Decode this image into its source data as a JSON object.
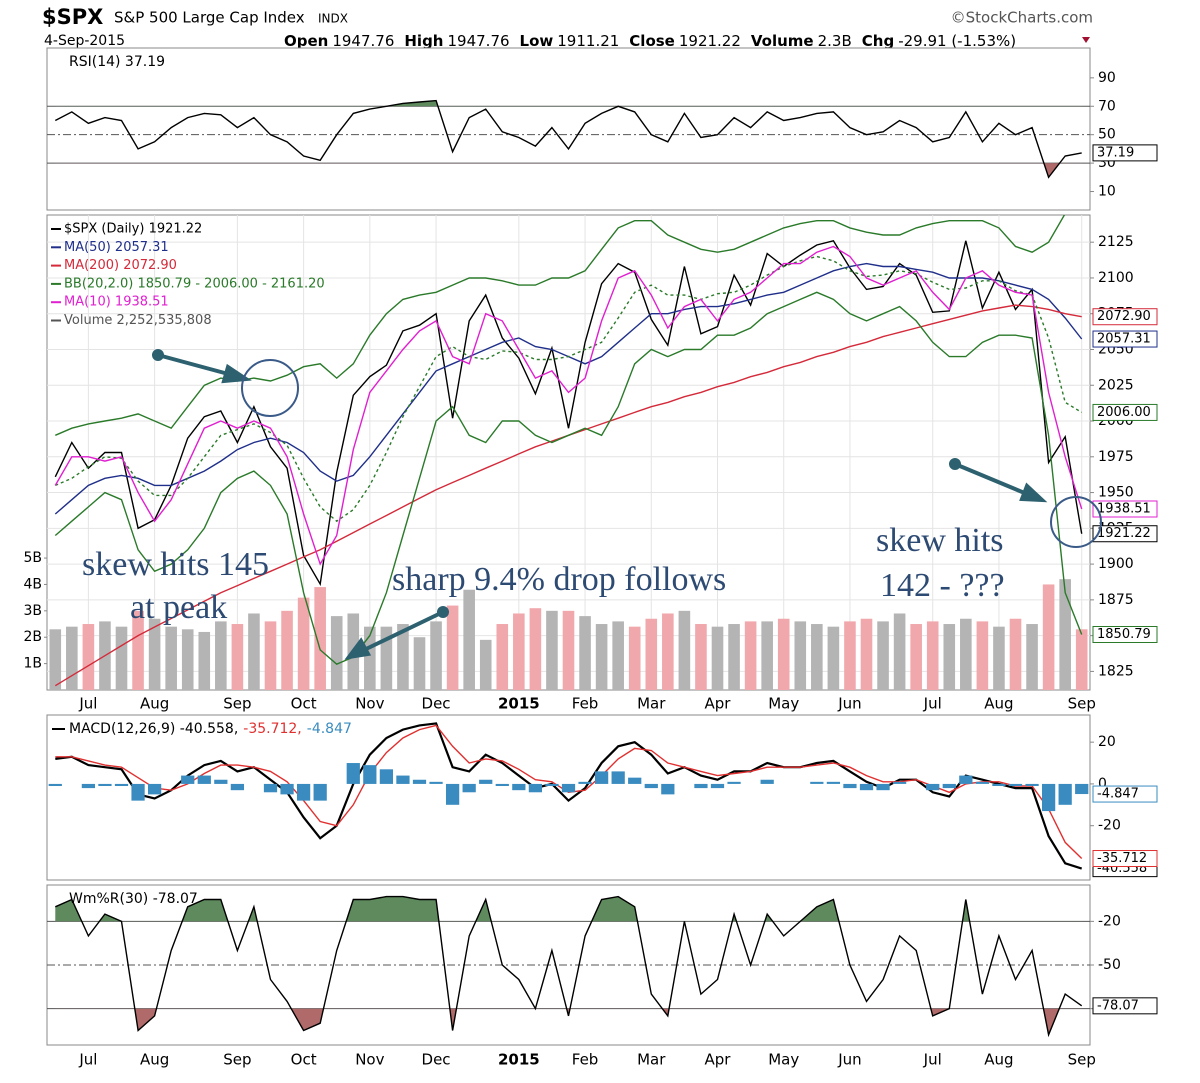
{
  "header": {
    "symbol": "$SPX",
    "name": "S&P 500 Large Cap Index",
    "exchange": "INDX",
    "source": "©StockCharts.com",
    "date": "4-Sep-2015",
    "quote": [
      {
        "label": "Open",
        "value": "1947.76"
      },
      {
        "label": "High",
        "value": "1947.76"
      },
      {
        "label": "Low",
        "value": "1911.21"
      },
      {
        "label": "Close",
        "value": "1921.22"
      },
      {
        "label": "Volume",
        "value": "2.3B"
      },
      {
        "label": "Chg",
        "value": "-29.91 (-1.53%)"
      }
    ]
  },
  "chart_data": [
    {
      "type": "line",
      "title": "RSI(14) 37.19",
      "ylim": [
        -3,
        111
      ],
      "yticks": [
        10,
        30,
        50,
        70,
        90
      ],
      "levels": [
        70,
        50,
        30
      ],
      "fill_above": {
        "value": 70,
        "color": "#5e8a5e"
      },
      "fill_below": {
        "value": 30,
        "color": "#b06a6a"
      },
      "series": [
        {
          "color": "#000000",
          "last_label": "37.19",
          "values": [
            60,
            66,
            58,
            62,
            60,
            40,
            45,
            55,
            62,
            65,
            64,
            55,
            62,
            50,
            45,
            35,
            32,
            50,
            65,
            68,
            70,
            72,
            73,
            74,
            38,
            62,
            68,
            52,
            48,
            42,
            55,
            40,
            58,
            65,
            70,
            66,
            50,
            45,
            65,
            48,
            50,
            62,
            55,
            66,
            60,
            62,
            65,
            66,
            55,
            50,
            52,
            60,
            55,
            45,
            48,
            66,
            45,
            58,
            50,
            55,
            20,
            35,
            37.19
          ]
        }
      ]
    },
    {
      "type": "line",
      "grid": true,
      "ylim": [
        1812,
        2144
      ],
      "yticks": [
        1825,
        1850,
        1875,
        1900,
        1925,
        1950,
        1975,
        2000,
        2025,
        2050,
        2075,
        2100,
        2125
      ],
      "categories": [
        null,
        null,
        "Jul",
        null,
        null,
        null,
        "Aug",
        null,
        null,
        null,
        null,
        "Sep",
        null,
        null,
        null,
        "Oct",
        null,
        null,
        null,
        "Nov",
        null,
        null,
        null,
        "Dec",
        null,
        null,
        null,
        null,
        "2015",
        null,
        null,
        null,
        "Feb",
        null,
        null,
        null,
        "Mar",
        null,
        null,
        null,
        "Apr",
        null,
        null,
        null,
        "May",
        null,
        null,
        null,
        "Jun",
        null,
        null,
        null,
        null,
        "Jul",
        null,
        null,
        null,
        "Aug",
        null,
        null,
        null,
        null,
        "Sep"
      ],
      "series": [
        {
          "name": "$SPX (Daily) 1921.22",
          "color": "#000000",
          "last_label": "1921.22",
          "values": [
            1961,
            1985,
            1967,
            1978,
            1978,
            1925,
            1931,
            1955,
            1988,
            2003,
            2007,
            1985,
            2010,
            1982,
            1967,
            1906,
            1886,
            1964,
            2018,
            2031,
            2039,
            2063,
            2067,
            2075,
            2002,
            2070,
            2088,
            2058,
            2044,
            2019,
            2051,
            1995,
            2055,
            2096,
            2110,
            2104,
            2071,
            2053,
            2108,
            2061,
            2066,
            2102,
            2081,
            2117,
            2108,
            2116,
            2123,
            2126,
            2107,
            2092,
            2094,
            2110,
            2102,
            2076,
            2077,
            2126,
            2079,
            2104,
            2078,
            2092,
            1971,
            1989,
            1921.22
          ]
        },
        {
          "name": "MA(50) 2057.31",
          "color": "#1f2f8a",
          "last_label": "2057.31",
          "values": [
            1935,
            1945,
            1955,
            1960,
            1962,
            1960,
            1955,
            1955,
            1960,
            1965,
            1972,
            1980,
            1985,
            1988,
            1985,
            1978,
            1965,
            1958,
            1962,
            1975,
            1990,
            2005,
            2020,
            2035,
            2040,
            2045,
            2050,
            2055,
            2058,
            2052,
            2050,
            2045,
            2040,
            2045,
            2055,
            2065,
            2075,
            2075,
            2078,
            2080,
            2080,
            2082,
            2085,
            2088,
            2090,
            2095,
            2100,
            2105,
            2108,
            2110,
            2108,
            2108,
            2106,
            2104,
            2100,
            2100,
            2100,
            2098,
            2095,
            2092,
            2085,
            2072,
            2057.31
          ]
        },
        {
          "name": "MA(200) 2072.90",
          "color": "#d42a3a",
          "last_label": "2072.90",
          "values": [
            1815,
            1822,
            1829,
            1836,
            1843,
            1850,
            1856,
            1862,
            1868,
            1874,
            1880,
            1885,
            1890,
            1895,
            1900,
            1905,
            1910,
            1916,
            1922,
            1928,
            1934,
            1940,
            1946,
            1952,
            1957,
            1962,
            1967,
            1972,
            1977,
            1982,
            1986,
            1990,
            1994,
            1998,
            2002,
            2006,
            2010,
            2013,
            2017,
            2020,
            2024,
            2027,
            2031,
            2034,
            2038,
            2041,
            2045,
            2048,
            2052,
            2055,
            2059,
            2062,
            2065,
            2068,
            2071,
            2074,
            2077,
            2079,
            2081,
            2080,
            2078,
            2075,
            2072.9
          ]
        },
        {
          "name": "BB(20,2.0) 1850.79 - 2006.00 - 2161.20",
          "color": "#2a7a2a",
          "last_label": "2006.00",
          "lower_last_label": "1850.79",
          "values": [
            1955,
            1960,
            1968,
            1975,
            1974,
            1958,
            1948,
            1948,
            1960,
            1975,
            1990,
            1994,
            1998,
            1992,
            1983,
            1960,
            1940,
            1930,
            1938,
            1955,
            1978,
            2003,
            2024,
            2045,
            2052,
            2045,
            2043,
            2049,
            2048,
            2043,
            2043,
            2045,
            2050,
            2055,
            2072,
            2090,
            2095,
            2088,
            2088,
            2085,
            2089,
            2090,
            2095,
            2102,
            2108,
            2112,
            2115,
            2112,
            2105,
            2101,
            2102,
            2105,
            2103,
            2097,
            2092,
            2093,
            2098,
            2098,
            2091,
            2088,
            2058,
            2013,
            2006
          ],
          "upper": [
            1990,
            1995,
            1998,
            2000,
            2002,
            2005,
            2000,
            1995,
            2010,
            2025,
            2030,
            2028,
            2030,
            2028,
            2032,
            2038,
            2040,
            2030,
            2040,
            2060,
            2075,
            2085,
            2088,
            2090,
            2095,
            2100,
            2100,
            2098,
            2095,
            2095,
            2100,
            2100,
            2105,
            2120,
            2135,
            2140,
            2140,
            2130,
            2125,
            2120,
            2118,
            2120,
            2125,
            2130,
            2135,
            2138,
            2140,
            2140,
            2135,
            2132,
            2130,
            2130,
            2135,
            2138,
            2140,
            2140,
            2140,
            2135,
            2122,
            2118,
            2125,
            2145,
            2161.2
          ],
          "lower": [
            1920,
            1930,
            1940,
            1950,
            1945,
            1910,
            1895,
            1900,
            1910,
            1925,
            1950,
            1960,
            1965,
            1955,
            1935,
            1880,
            1840,
            1830,
            1835,
            1850,
            1880,
            1920,
            1960,
            2000,
            2010,
            1990,
            1985,
            2000,
            2000,
            1990,
            1985,
            1990,
            1995,
            1990,
            2010,
            2040,
            2050,
            2045,
            2050,
            2050,
            2060,
            2060,
            2065,
            2075,
            2080,
            2085,
            2090,
            2085,
            2075,
            2070,
            2075,
            2080,
            2070,
            2055,
            2045,
            2045,
            2055,
            2060,
            2060,
            2058,
            1990,
            1880,
            1850.79
          ]
        },
        {
          "name": "MA(10) 1938.51",
          "color": "#e020d0",
          "last_label": "1938.51",
          "values": [
            1955,
            1975,
            1975,
            1972,
            1975,
            1950,
            1930,
            1945,
            1970,
            1995,
            2000,
            1995,
            2000,
            1995,
            1975,
            1935,
            1900,
            1920,
            1980,
            2020,
            2035,
            2050,
            2063,
            2070,
            2045,
            2040,
            2075,
            2070,
            2050,
            2030,
            2035,
            2020,
            2030,
            2070,
            2100,
            2105,
            2088,
            2065,
            2080,
            2085,
            2070,
            2085,
            2090,
            2100,
            2110,
            2110,
            2118,
            2122,
            2115,
            2100,
            2095,
            2100,
            2105,
            2090,
            2078,
            2100,
            2105,
            2095,
            2090,
            2088,
            2020,
            1975,
            1938.51
          ]
        }
      ],
      "volume": {
        "name": "Volume 2,252,535,808",
        "up_color": "#b4b4b4",
        "down_color": "#f0a8ac",
        "ylim": [
          0,
          18
        ],
        "yticks": [
          {
            "value": 1,
            "label": "1B"
          },
          {
            "value": 2,
            "label": "2B"
          },
          {
            "value": 3,
            "label": "3B"
          },
          {
            "value": 4,
            "label": "4B"
          },
          {
            "value": 5,
            "label": "5B"
          }
        ],
        "values": [
          2.3,
          2.4,
          2.5,
          2.6,
          2.4,
          3.0,
          2.7,
          2.4,
          2.3,
          2.2,
          2.6,
          2.5,
          2.9,
          2.6,
          3.0,
          3.5,
          3.9,
          2.8,
          2.9,
          2.4,
          2.4,
          2.5,
          2.0,
          2.6,
          3.2,
          3.8,
          1.9,
          2.5,
          2.9,
          3.1,
          3.0,
          3.0,
          2.8,
          2.5,
          2.6,
          2.4,
          2.7,
          2.9,
          3.0,
          2.5,
          2.4,
          2.5,
          2.6,
          2.6,
          2.7,
          2.6,
          2.5,
          2.4,
          2.6,
          2.7,
          2.6,
          2.9,
          2.5,
          2.6,
          2.5,
          2.7,
          2.6,
          2.4,
          2.7,
          2.5,
          4.0,
          4.2,
          2.3
        ]
      },
      "annotations": [
        [
          "skew hits 145",
          "at peak"
        ],
        [
          "sharp 9.4% drop follows"
        ],
        [
          "skew hits",
          "142 - ???"
        ]
      ]
    },
    {
      "type": "line",
      "title_parts": [
        "MACD(12,26,9) -40.558,",
        "-35.712,",
        "-4.847"
      ],
      "ylim": [
        -46,
        33
      ],
      "yticks": [
        -20,
        0,
        20
      ],
      "series": [
        {
          "color": "#000000",
          "last_label": "-40.558",
          "values": [
            12,
            13,
            9,
            8,
            7,
            -5,
            -7,
            -3,
            4,
            9,
            11,
            6,
            8,
            2,
            -4,
            -16,
            -26,
            -20,
            0,
            14,
            22,
            26,
            28,
            29,
            8,
            6,
            14,
            10,
            4,
            -2,
            0,
            -8,
            -2,
            10,
            18,
            20,
            14,
            5,
            8,
            4,
            2,
            6,
            6,
            10,
            8,
            8,
            10,
            11,
            6,
            1,
            -2,
            2,
            2,
            -4,
            -6,
            4,
            2,
            0,
            -2,
            -2,
            -25,
            -38,
            -40.558
          ]
        },
        {
          "color": "#e03030",
          "last_label": "-35.712",
          "values": [
            13,
            13,
            11,
            9,
            8,
            3,
            -2,
            -3,
            0,
            5,
            9,
            9,
            8,
            6,
            1,
            -8,
            -18,
            -20,
            -10,
            5,
            15,
            22,
            26,
            28,
            18,
            10,
            12,
            11,
            7,
            2,
            1,
            -4,
            -3,
            4,
            12,
            17,
            16,
            10,
            8,
            6,
            4,
            5,
            6,
            8,
            8,
            8,
            9,
            10,
            8,
            4,
            1,
            1,
            2,
            -1,
            -4,
            0,
            1,
            1,
            -1,
            -1,
            -12,
            -28,
            -35.712
          ]
        },
        {
          "type": "bar",
          "color": "#3a8cc0",
          "last_label": "-4.847",
          "values": [
            -1,
            0,
            -2,
            -1,
            -1,
            -8,
            -5,
            0,
            4,
            4,
            2,
            -3,
            0,
            -4,
            -5,
            -8,
            -8,
            0,
            10,
            9,
            7,
            4,
            2,
            1,
            -10,
            -4,
            2,
            -1,
            -3,
            -4,
            -1,
            -4,
            1,
            6,
            6,
            3,
            -2,
            -5,
            0,
            -2,
            -2,
            1,
            0,
            2,
            0,
            0,
            1,
            1,
            -2,
            -3,
            -3,
            1,
            0,
            -3,
            -2,
            4,
            1,
            -1,
            -1,
            -1,
            -13,
            -10,
            -4.847
          ]
        }
      ]
    },
    {
      "type": "line",
      "title": "Wm%R(30) -78.07",
      "ylim": [
        -105,
        5
      ],
      "yticks": [
        -80,
        -50,
        -20
      ],
      "levels": [
        -20,
        -50,
        -80
      ],
      "fill_above": {
        "value": -20,
        "color": "#5e8a5e"
      },
      "fill_below": {
        "value": -80,
        "color": "#b06a6a"
      },
      "series": [
        {
          "color": "#000000",
          "last_label": "-78.07",
          "values": [
            -10,
            -5,
            -30,
            -15,
            -20,
            -95,
            -85,
            -40,
            -10,
            -5,
            -5,
            -40,
            -10,
            -60,
            -75,
            -95,
            -90,
            -40,
            -5,
            -5,
            -3,
            -3,
            -5,
            -5,
            -95,
            -30,
            -5,
            -50,
            -60,
            -80,
            -40,
            -85,
            -30,
            -5,
            -3,
            -10,
            -70,
            -85,
            -20,
            -70,
            -60,
            -15,
            -50,
            -15,
            -30,
            -20,
            -10,
            -5,
            -50,
            -75,
            -60,
            -30,
            -40,
            -85,
            -80,
            -5,
            -70,
            -30,
            -60,
            -40,
            -98,
            -70,
            -78.07
          ]
        }
      ]
    }
  ]
}
